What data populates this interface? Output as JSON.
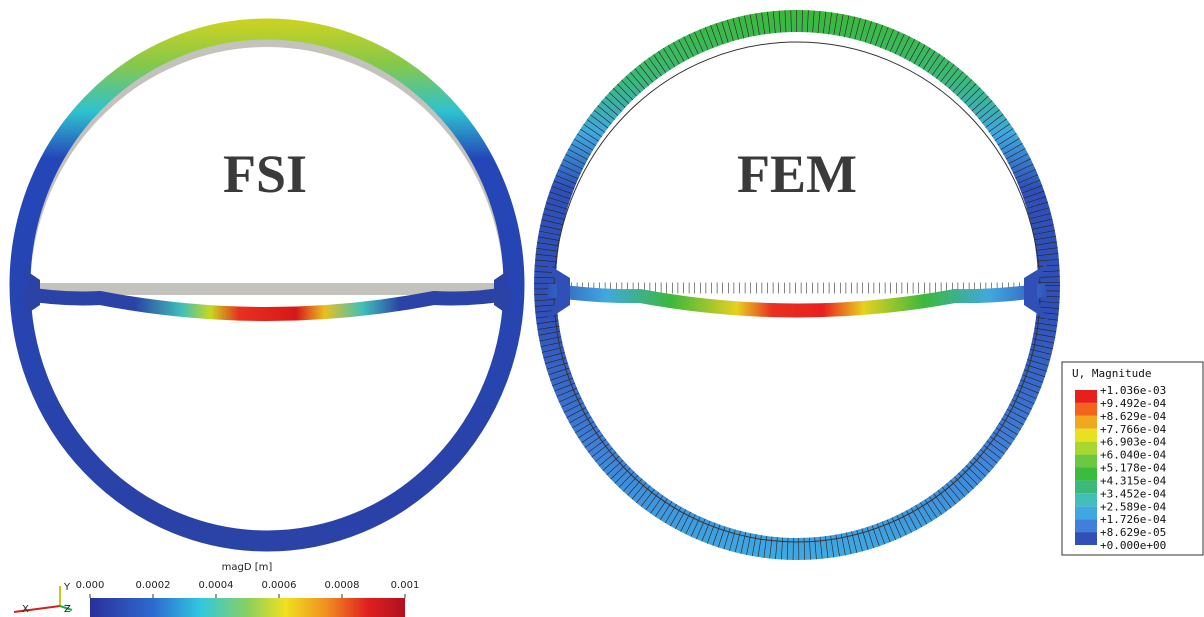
{
  "panels": [
    {
      "label": "FSI"
    },
    {
      "label": "FEM"
    }
  ],
  "colorbar": {
    "title": "magD [m]",
    "ticks": [
      "0.000",
      "0.0002",
      "0.0004",
      "0.0006",
      "0.0008",
      "0.001"
    ]
  },
  "axes": {
    "y": "Y",
    "x": "X",
    "z": "Z"
  },
  "legend": {
    "title": "U, Magnitude",
    "labels": [
      "+1.036e-03",
      "+9.492e-04",
      "+8.629e-04",
      "+7.766e-04",
      "+6.903e-04",
      "+6.040e-04",
      "+5.178e-04",
      "+4.315e-04",
      "+3.452e-04",
      "+2.589e-04",
      "+1.726e-04",
      "+8.629e-05",
      "+0.000e+00"
    ],
    "colors": [
      "#e8201c",
      "#f0641c",
      "#f0a81c",
      "#e8e020",
      "#a8d830",
      "#6cc840",
      "#3cbc3c",
      "#3cb878",
      "#40c0b8",
      "#40a8e0",
      "#4080d8",
      "#3050b8"
    ]
  }
}
